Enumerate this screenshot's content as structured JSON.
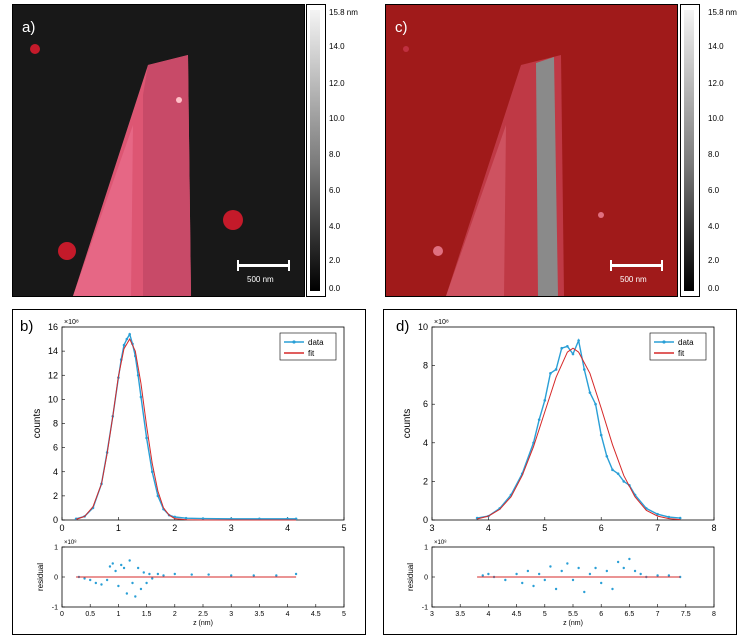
{
  "panel_a": {
    "label": "a)",
    "scalebar": "500 nm"
  },
  "panel_c": {
    "label": "c)",
    "scalebar": "500 nm"
  },
  "colorbar": {
    "ticks": [
      "15.8 nm",
      "14.0",
      "12.0",
      "10.0",
      "8.0",
      "6.0",
      "4.0",
      "2.0",
      "0.0"
    ]
  },
  "panel_b": {
    "label": "b)"
  },
  "panel_d": {
    "label": "d)"
  },
  "colors": {
    "data": "#2a9fd6",
    "fit": "#d62828",
    "flake": "#f05a78",
    "background_a": "#1a1a1a",
    "background_c": "#a81c1c"
  },
  "chart_data": [
    {
      "id": "b-main",
      "type": "line",
      "title": "",
      "ylabel": "counts",
      "xlabel": "",
      "multiplier": "×10⁸",
      "xlim": [
        0,
        5
      ],
      "ylim": [
        0,
        16
      ],
      "xticks": [
        "0",
        "1",
        "2",
        "3",
        "4",
        "5"
      ],
      "yticks": [
        "0",
        "2",
        "4",
        "6",
        "8",
        "10",
        "12",
        "14",
        "16"
      ],
      "legend": [
        "data",
        "fit"
      ],
      "legend_position": "top-right",
      "series": [
        {
          "name": "data",
          "x": [
            0.25,
            0.4,
            0.55,
            0.7,
            0.8,
            0.9,
            1.0,
            1.05,
            1.1,
            1.15,
            1.2,
            1.25,
            1.3,
            1.35,
            1.4,
            1.5,
            1.6,
            1.7,
            1.8,
            1.9,
            2.0,
            2.2,
            2.5,
            3.0,
            3.5,
            4.0,
            4.15
          ],
          "y": [
            0.1,
            0.3,
            1.0,
            3.0,
            5.6,
            8.6,
            11.8,
            13.3,
            14.5,
            15.0,
            15.4,
            14.6,
            13.6,
            12.0,
            10.2,
            6.8,
            4.0,
            2.0,
            0.9,
            0.4,
            0.25,
            0.15,
            0.12,
            0.1,
            0.1,
            0.1,
            0.1
          ]
        },
        {
          "name": "fit",
          "x": [
            0.25,
            0.4,
            0.55,
            0.7,
            0.8,
            0.9,
            1.0,
            1.1,
            1.2,
            1.3,
            1.4,
            1.5,
            1.6,
            1.7,
            1.8,
            1.9,
            2.0,
            2.2,
            2.5,
            3.0,
            3.5,
            4.0,
            4.15
          ],
          "y": [
            0.05,
            0.3,
            1.1,
            3.0,
            5.5,
            8.6,
            11.9,
            14.2,
            15.0,
            14.0,
            11.3,
            7.8,
            4.7,
            2.4,
            1.0,
            0.4,
            0.12,
            0.02,
            0,
            0,
            0,
            0,
            0
          ]
        }
      ]
    },
    {
      "id": "b-residual",
      "type": "scatter",
      "ylabel": "residual",
      "xlabel": "z (nm)",
      "multiplier": "×10⁸",
      "xlim": [
        0,
        5
      ],
      "ylim": [
        -1,
        1
      ],
      "xticks": [
        "0",
        "0.5",
        "1",
        "1.5",
        "2",
        "2.5",
        "3",
        "3.5",
        "4",
        "4.5",
        "5"
      ],
      "yticks": [
        "-1",
        "0",
        "1"
      ],
      "series": [
        {
          "name": "residual",
          "x": [
            0.3,
            0.4,
            0.5,
            0.6,
            0.7,
            0.8,
            0.85,
            0.9,
            0.95,
            1.0,
            1.05,
            1.1,
            1.15,
            1.2,
            1.25,
            1.3,
            1.35,
            1.4,
            1.45,
            1.5,
            1.55,
            1.6,
            1.7,
            1.8,
            2.0,
            2.3,
            2.6,
            3.0,
            3.4,
            3.8,
            4.15
          ],
          "y": [
            0.0,
            -0.05,
            -0.1,
            -0.2,
            -0.25,
            -0.1,
            0.35,
            0.45,
            0.2,
            -0.3,
            0.4,
            0.3,
            -0.55,
            0.55,
            -0.2,
            -0.65,
            0.3,
            -0.4,
            0.15,
            -0.2,
            0.1,
            -0.05,
            0.1,
            0.05,
            0.1,
            0.08,
            0.08,
            0.05,
            0.05,
            0.05,
            0.1
          ]
        },
        {
          "name": "zero",
          "x": [
            0.25,
            4.15
          ],
          "y": [
            0,
            0
          ]
        }
      ]
    },
    {
      "id": "d-main",
      "type": "line",
      "title": "",
      "ylabel": "counts",
      "xlabel": "",
      "multiplier": "×10⁸",
      "xlim": [
        3,
        8
      ],
      "ylim": [
        0,
        10
      ],
      "xticks": [
        "3",
        "4",
        "5",
        "6",
        "7",
        "8"
      ],
      "yticks": [
        "0",
        "2",
        "4",
        "6",
        "8",
        "10"
      ],
      "legend": [
        "data",
        "fit"
      ],
      "legend_position": "top-right",
      "series": [
        {
          "name": "data",
          "x": [
            3.8,
            4.0,
            4.2,
            4.4,
            4.6,
            4.8,
            4.9,
            5.0,
            5.1,
            5.2,
            5.3,
            5.4,
            5.5,
            5.6,
            5.7,
            5.8,
            5.9,
            6.0,
            6.1,
            6.2,
            6.3,
            6.4,
            6.5,
            6.6,
            6.8,
            7.0,
            7.2,
            7.4
          ],
          "y": [
            0.1,
            0.2,
            0.6,
            1.3,
            2.4,
            4.0,
            5.2,
            6.2,
            7.6,
            7.8,
            8.9,
            9.0,
            8.6,
            9.3,
            7.8,
            6.6,
            6.0,
            4.4,
            3.3,
            2.6,
            2.4,
            2.0,
            1.8,
            1.3,
            0.6,
            0.3,
            0.15,
            0.1
          ]
        },
        {
          "name": "fit",
          "x": [
            3.8,
            4.0,
            4.2,
            4.4,
            4.6,
            4.8,
            5.0,
            5.2,
            5.4,
            5.5,
            5.6,
            5.8,
            6.0,
            6.2,
            6.4,
            6.6,
            6.8,
            7.0,
            7.2,
            7.4
          ],
          "y": [
            0.05,
            0.2,
            0.55,
            1.2,
            2.3,
            3.8,
            5.6,
            7.4,
            8.7,
            8.9,
            8.7,
            7.6,
            5.8,
            3.9,
            2.3,
            1.2,
            0.5,
            0.2,
            0.07,
            0.02
          ]
        }
      ]
    },
    {
      "id": "d-residual",
      "type": "scatter",
      "ylabel": "residual",
      "xlabel": "z (nm)",
      "multiplier": "×10⁸",
      "xlim": [
        3,
        8
      ],
      "ylim": [
        -1,
        1
      ],
      "xticks": [
        "3",
        "3.5",
        "4",
        "4.5",
        "5",
        "5.5",
        "6",
        "6.5",
        "7",
        "7.5",
        "8"
      ],
      "yticks": [
        "-1",
        "0",
        "1"
      ],
      "series": [
        {
          "name": "residual",
          "x": [
            3.9,
            4.0,
            4.1,
            4.3,
            4.5,
            4.6,
            4.7,
            4.8,
            4.9,
            5.0,
            5.1,
            5.2,
            5.3,
            5.4,
            5.5,
            5.6,
            5.7,
            5.8,
            5.9,
            6.0,
            6.1,
            6.2,
            6.3,
            6.4,
            6.5,
            6.6,
            6.7,
            6.8,
            7.0,
            7.2,
            7.4
          ],
          "y": [
            0.05,
            0.1,
            0.0,
            -0.1,
            0.1,
            -0.2,
            0.2,
            -0.3,
            0.1,
            -0.1,
            0.35,
            -0.4,
            0.2,
            0.45,
            -0.1,
            0.3,
            -0.5,
            0.1,
            0.3,
            -0.2,
            0.2,
            -0.4,
            0.5,
            0.3,
            0.6,
            0.2,
            0.1,
            0.0,
            0.05,
            0.05,
            0.0
          ]
        },
        {
          "name": "zero",
          "x": [
            3.8,
            7.4
          ],
          "y": [
            0,
            0
          ]
        }
      ]
    }
  ]
}
